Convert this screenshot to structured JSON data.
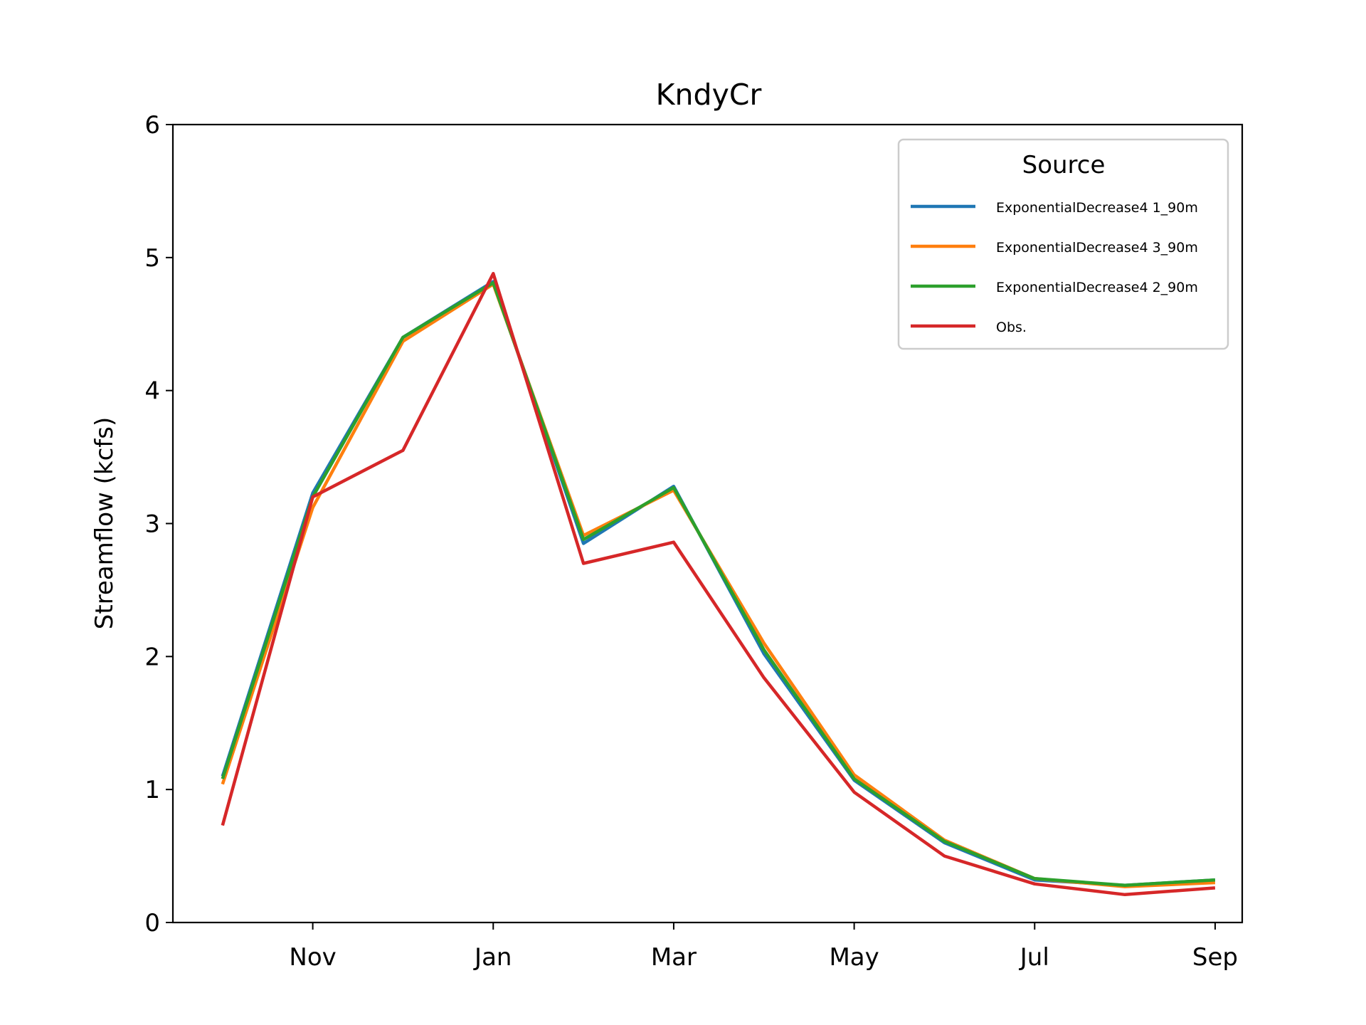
{
  "chart_data": {
    "type": "line",
    "title": "KndyCr",
    "xlabel": "",
    "ylabel": "Streamflow (kcfs)",
    "ylim": [
      0,
      6
    ],
    "yticks": [
      0,
      1,
      2,
      3,
      4,
      5,
      6
    ],
    "xlim": [
      0.45,
      12.3
    ],
    "xticks": [
      {
        "pos": 2,
        "label": "Nov"
      },
      {
        "pos": 4,
        "label": "Jan"
      },
      {
        "pos": 6,
        "label": "Mar"
      },
      {
        "pos": 8,
        "label": "May"
      },
      {
        "pos": 10,
        "label": "Jul"
      },
      {
        "pos": 12,
        "label": "Sep"
      }
    ],
    "x": [
      1,
      2,
      3,
      4,
      5,
      6,
      7,
      8,
      9,
      10,
      11,
      12
    ],
    "legend": {
      "title": "Source",
      "position": "upper right"
    },
    "grid": false,
    "series": [
      {
        "name": "ExponentialDecrease4 1_90m",
        "color": "#1f77b4",
        "values": [
          1.1,
          3.23,
          4.4,
          4.82,
          2.85,
          3.28,
          2.02,
          1.07,
          0.6,
          0.32,
          0.28,
          0.32
        ]
      },
      {
        "name": "ExponentialDecrease4 3_90m",
        "color": "#ff7f0e",
        "values": [
          1.04,
          3.12,
          4.37,
          4.8,
          2.91,
          3.25,
          2.1,
          1.11,
          0.62,
          0.33,
          0.27,
          0.3
        ]
      },
      {
        "name": "ExponentialDecrease4 2_90m",
        "color": "#2ca02c",
        "values": [
          1.08,
          3.2,
          4.4,
          4.81,
          2.88,
          3.27,
          2.05,
          1.08,
          0.61,
          0.33,
          0.28,
          0.32
        ]
      },
      {
        "name": "Obs.",
        "color": "#d62728",
        "values": [
          0.73,
          3.2,
          3.55,
          4.88,
          2.7,
          2.86,
          1.84,
          0.98,
          0.5,
          0.29,
          0.21,
          0.26
        ]
      }
    ]
  }
}
